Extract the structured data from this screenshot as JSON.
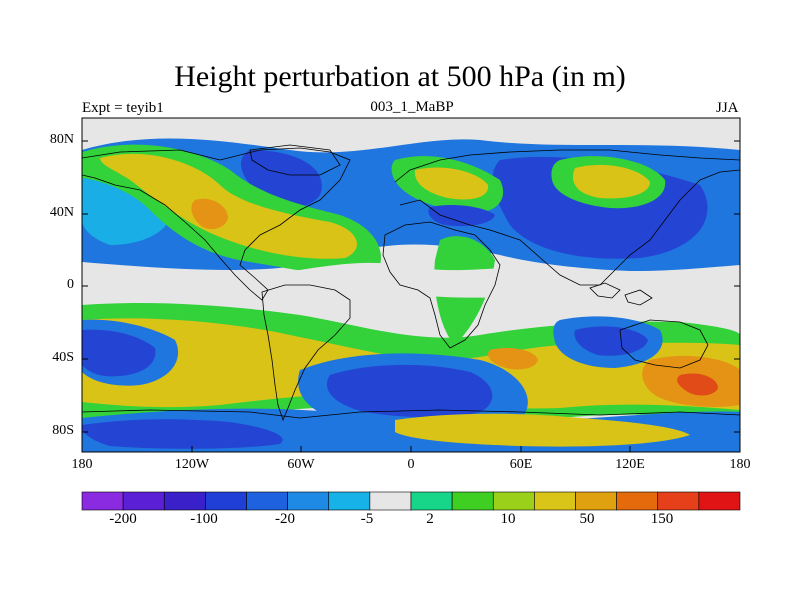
{
  "title": "Height perturbation at 500 hPa (in m)",
  "left_label": "Expt = teyib1",
  "center_label": "003_1_MaBP",
  "right_label": "JJA",
  "lat_ticks": [
    "80N",
    "40N",
    "0",
    "40S",
    "80S"
  ],
  "lon_ticks": [
    "180",
    "120W",
    "60W",
    "0",
    "60E",
    "120E",
    "180"
  ],
  "colorbar": {
    "labels": [
      "-200",
      "-100",
      "-20",
      "-5",
      "2",
      "10",
      "50",
      "150"
    ],
    "colors": [
      "#8a2be2",
      "#5b1fd6",
      "#3a20c8",
      "#1f3fd6",
      "#1f62e0",
      "#1e8ae6",
      "#17b2e8",
      "#e6e6e6",
      "#17d68a",
      "#3ecf22",
      "#9ad01a",
      "#d9c517",
      "#e0a110",
      "#e56a0c",
      "#e5401a",
      "#e01414"
    ]
  },
  "map_colors": {
    "neutral": "#e6e6e6",
    "deep_blue": "#2445d4",
    "blue": "#1f76de",
    "cyan": "#19aee6",
    "green": "#33d13a",
    "lime": "#a6cf1a",
    "yellow": "#d9c317",
    "orange": "#e49314",
    "red": "#e04b17"
  }
}
